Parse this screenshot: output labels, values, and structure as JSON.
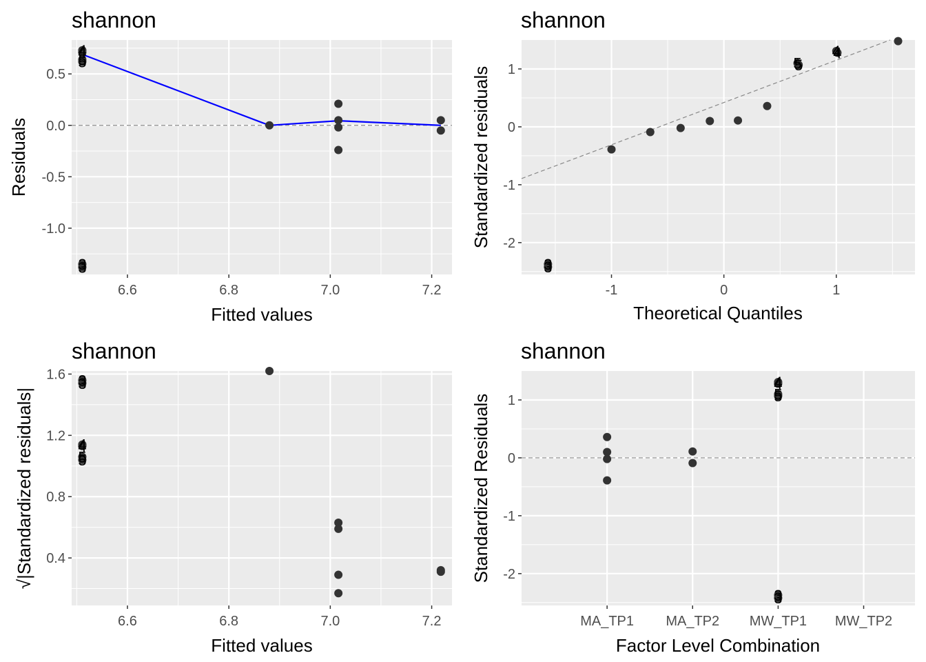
{
  "chart_data": [
    {
      "type": "scatter",
      "title": "shannon",
      "xlabel": "Fitted values",
      "ylabel": "Residuals",
      "xlim": [
        6.49,
        7.24
      ],
      "ylim": [
        -1.45,
        0.83
      ],
      "x_ticks": [
        6.6,
        6.8,
        7.0,
        7.2
      ],
      "x_ticklabels": [
        "6.6",
        "6.8",
        "7.0",
        "7.2"
      ],
      "y_ticks": [
        -1.0,
        -0.5,
        0.0,
        0.5
      ],
      "y_ticklabels": [
        "-1.0",
        "-0.5",
        "0.0",
        "0.5"
      ],
      "hline": 0,
      "points": [
        {
          "x": 6.511,
          "y": 0.73
        },
        {
          "x": 6.511,
          "y": 0.71
        },
        {
          "x": 6.511,
          "y": 0.64
        },
        {
          "x": 6.511,
          "y": 0.62
        },
        {
          "x": 6.511,
          "y": -1.35
        },
        {
          "x": 6.511,
          "y": -1.38
        },
        {
          "x": 6.88,
          "y": 0.0
        },
        {
          "x": 7.016,
          "y": 0.21
        },
        {
          "x": 7.016,
          "y": 0.05
        },
        {
          "x": 7.016,
          "y": -0.02
        },
        {
          "x": 7.016,
          "y": -0.24
        },
        {
          "x": 7.218,
          "y": 0.05
        },
        {
          "x": 7.218,
          "y": -0.05
        }
      ],
      "labels": [
        {
          "x": 6.511,
          "y": 0.73,
          "text": "4"
        },
        {
          "x": 6.511,
          "y": 0.71,
          "text": "4"
        },
        {
          "x": 6.511,
          "y": 0.64,
          "text": "5"
        },
        {
          "x": 6.511,
          "y": 0.62,
          "text": "5"
        },
        {
          "x": 6.511,
          "y": -1.35,
          "text": "3"
        },
        {
          "x": 6.511,
          "y": -1.38,
          "text": "3"
        }
      ],
      "smooth": [
        {
          "x": 6.511,
          "y": 0.69
        },
        {
          "x": 6.88,
          "y": 0.0
        },
        {
          "x": 7.016,
          "y": 0.045
        },
        {
          "x": 7.218,
          "y": 0.0
        }
      ],
      "smooth_color": "#0000ff"
    },
    {
      "type": "scatter",
      "title": "shannon",
      "xlabel": "Theoretical Quantiles",
      "ylabel": "Standardized residuals",
      "xlim": [
        -1.8,
        1.7
      ],
      "ylim": [
        -2.55,
        1.5
      ],
      "x_ticks": [
        -1,
        0,
        1
      ],
      "x_ticklabels": [
        "-1",
        "0",
        "1"
      ],
      "y_ticks": [
        -2,
        -1,
        0,
        1
      ],
      "y_ticklabels": [
        "-2",
        "-1",
        "0",
        "1"
      ],
      "refline": {
        "intercept": 0.42,
        "slope": 0.73
      },
      "points": [
        {
          "x": -1.565,
          "y": -2.37
        },
        {
          "x": -1.565,
          "y": -2.42
        },
        {
          "x": -1.0,
          "y": -0.39
        },
        {
          "x": -0.655,
          "y": -0.09
        },
        {
          "x": -0.385,
          "y": -0.02
        },
        {
          "x": -0.125,
          "y": 0.1
        },
        {
          "x": 0.125,
          "y": 0.11
        },
        {
          "x": 0.385,
          "y": 0.36
        },
        {
          "x": 0.655,
          "y": 1.1
        },
        {
          "x": 0.665,
          "y": 1.07
        },
        {
          "x": 1.0,
          "y": 1.31
        },
        {
          "x": 1.01,
          "y": 1.28
        },
        {
          "x": 1.55,
          "y": 1.48
        }
      ],
      "labels": [
        {
          "x": -1.565,
          "y": -2.37,
          "text": "3"
        },
        {
          "x": -1.565,
          "y": -2.42,
          "text": "3"
        },
        {
          "x": 0.655,
          "y": 1.1,
          "text": "5"
        },
        {
          "x": 0.665,
          "y": 1.07,
          "text": "5"
        },
        {
          "x": 1.0,
          "y": 1.31,
          "text": "4"
        },
        {
          "x": 1.01,
          "y": 1.28,
          "text": "4"
        }
      ]
    },
    {
      "type": "scatter",
      "title": "shannon",
      "xlabel": "Fitted values",
      "ylabel": "√|Standardized residuals|",
      "xlim": [
        6.49,
        7.24
      ],
      "ylim": [
        0.09,
        1.62
      ],
      "x_ticks": [
        6.6,
        6.8,
        7.0,
        7.2
      ],
      "x_ticklabels": [
        "6.6",
        "6.8",
        "7.0",
        "7.2"
      ],
      "y_ticks": [
        0.4,
        0.8,
        1.2,
        1.6
      ],
      "y_ticklabels": [
        "0.4",
        "0.8",
        "1.2",
        "1.6"
      ],
      "points": [
        {
          "x": 6.511,
          "y": 1.56
        },
        {
          "x": 6.511,
          "y": 1.54
        },
        {
          "x": 6.511,
          "y": 1.14
        },
        {
          "x": 6.511,
          "y": 1.13
        },
        {
          "x": 6.511,
          "y": 1.06
        },
        {
          "x": 6.511,
          "y": 1.04
        },
        {
          "x": 6.88,
          "y": 1.62
        },
        {
          "x": 7.016,
          "y": 0.63
        },
        {
          "x": 7.016,
          "y": 0.59
        },
        {
          "x": 7.016,
          "y": 0.29
        },
        {
          "x": 7.016,
          "y": 0.17
        },
        {
          "x": 7.218,
          "y": 0.32
        },
        {
          "x": 7.218,
          "y": 0.31
        }
      ],
      "labels": [
        {
          "x": 6.511,
          "y": 1.56,
          "text": "3"
        },
        {
          "x": 6.511,
          "y": 1.54,
          "text": "3"
        },
        {
          "x": 6.511,
          "y": 1.14,
          "text": "4"
        },
        {
          "x": 6.511,
          "y": 1.13,
          "text": "4"
        },
        {
          "x": 6.511,
          "y": 1.06,
          "text": "5"
        },
        {
          "x": 6.511,
          "y": 1.04,
          "text": "5"
        }
      ]
    },
    {
      "type": "scatter",
      "title": "shannon",
      "xlabel": "Factor Level Combination",
      "ylabel": "Standardized Residuals",
      "categories": [
        "MA_TP1",
        "MA_TP2",
        "MW_TP1",
        "MW_TP2"
      ],
      "xlim": [
        0,
        4.6
      ],
      "ylim": [
        -2.55,
        1.5
      ],
      "y_ticks": [
        -2,
        -1,
        0,
        1
      ],
      "y_ticklabels": [
        "-2",
        "-1",
        "0",
        "1"
      ],
      "hline": 0,
      "points": [
        {
          "x": 1,
          "y": 0.36
        },
        {
          "x": 1,
          "y": 0.1
        },
        {
          "x": 1,
          "y": -0.02
        },
        {
          "x": 1,
          "y": -0.39
        },
        {
          "x": 2,
          "y": 0.11
        },
        {
          "x": 2,
          "y": -0.09
        },
        {
          "x": 3,
          "y": 1.31
        },
        {
          "x": 3,
          "y": 1.28
        },
        {
          "x": 3,
          "y": 1.1
        },
        {
          "x": 3,
          "y": 1.07
        },
        {
          "x": 3,
          "y": -2.37
        },
        {
          "x": 3,
          "y": -2.42
        }
      ],
      "labels": [
        {
          "x": 3,
          "y": 1.31,
          "text": "4"
        },
        {
          "x": 3,
          "y": 1.28,
          "text": "4"
        },
        {
          "x": 3,
          "y": 1.1,
          "text": "5"
        },
        {
          "x": 3,
          "y": 1.07,
          "text": "5"
        },
        {
          "x": 3,
          "y": -2.37,
          "text": "3"
        },
        {
          "x": 3,
          "y": -2.42,
          "text": "3"
        }
      ]
    }
  ]
}
